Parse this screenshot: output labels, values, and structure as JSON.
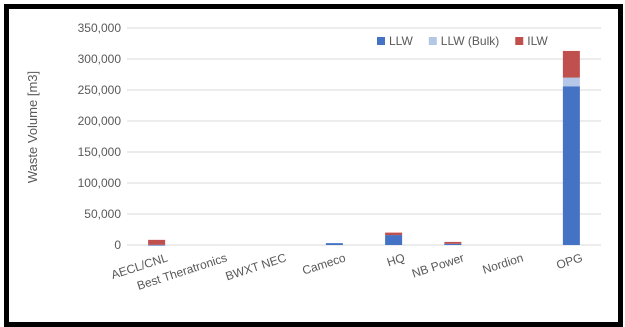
{
  "chart_data": {
    "type": "bar",
    "stacked": true,
    "title": "",
    "xlabel": "",
    "ylabel": "Waste Volume [m3]",
    "ylim": [
      0,
      350000
    ],
    "yticks": [
      0,
      50000,
      100000,
      150000,
      200000,
      250000,
      300000,
      350000
    ],
    "ytick_labels": [
      "0",
      "50,000",
      "100,000",
      "150,000",
      "200,000",
      "250,000",
      "300,000",
      "350,000"
    ],
    "grid": true,
    "legend_position": "top-right",
    "categories": [
      "AECL/CNL",
      "Best Theratronics",
      "BWXT NEC",
      "Cameco",
      "HQ",
      "NB Power",
      "Nordion",
      "OPG"
    ],
    "series": [
      {
        "name": "LLW",
        "color": "#4472C4",
        "values": [
          300,
          0,
          0,
          3000,
          16000,
          2000,
          0,
          256000
        ]
      },
      {
        "name": "LLW (Bulk)",
        "color": "#B4C7E7",
        "values": [
          0,
          0,
          0,
          0,
          0,
          0,
          0,
          14000
        ]
      },
      {
        "name": "ILW",
        "color": "#C0504D",
        "values": [
          8000,
          0,
          0,
          0,
          4000,
          3000,
          0,
          43000
        ]
      }
    ]
  }
}
